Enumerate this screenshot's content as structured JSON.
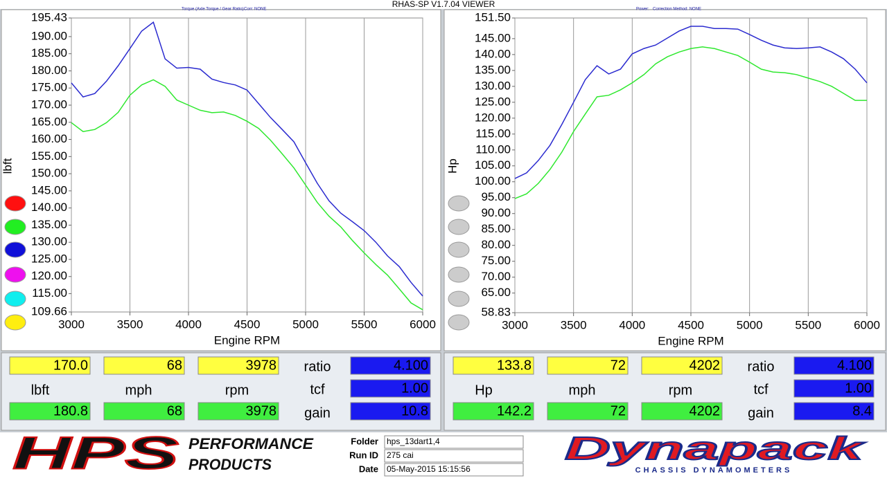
{
  "header": {
    "title": "RHAS-SP V1.7.04  VIEWER",
    "left_notes": [
      "Torque (Axle Torque / Gear Ratio)",
      "Corr: NONE"
    ],
    "right_notes": [
      "Power:",
      "Correction Method: NONE"
    ]
  },
  "chart_data": [
    {
      "type": "line",
      "xlabel": "Engine RPM",
      "ylabel": "lbft",
      "x": [
        3000,
        3100,
        3200,
        3300,
        3400,
        3500,
        3600,
        3700,
        3800,
        3900,
        4000,
        4100,
        4200,
        4300,
        4400,
        4500,
        4600,
        4700,
        4800,
        4900,
        5000,
        5100,
        5200,
        5300,
        5400,
        5500,
        5600,
        5700,
        5800,
        5900,
        6000
      ],
      "series": [
        {
          "color": "#2a2acf",
          "values": [
            176.5,
            172.4,
            173.4,
            177.0,
            181.5,
            186.5,
            191.6,
            194.2,
            183.5,
            180.8,
            181.0,
            180.5,
            177.6,
            176.6,
            175.9,
            174.4,
            170.4,
            166.4,
            162.9,
            159.3,
            153.2,
            147.2,
            142.1,
            138.5,
            136.0,
            133.4,
            130.0,
            126.0,
            122.9,
            118.3,
            114.3
          ]
        },
        {
          "color": "#2ee82e",
          "values": [
            164.9,
            162.3,
            162.9,
            164.9,
            167.9,
            172.9,
            175.9,
            177.4,
            175.5,
            171.5,
            170.0,
            168.5,
            167.8,
            168.0,
            167.0,
            165.3,
            163.2,
            159.8,
            155.8,
            151.7,
            146.7,
            141.6,
            137.6,
            134.5,
            130.5,
            126.9,
            123.5,
            120.4,
            116.4,
            112.3,
            110.3
          ]
        }
      ],
      "xlim": [
        3000,
        6000
      ],
      "ylim": [
        109.66,
        195.43
      ],
      "xticks": [
        3000,
        3500,
        4000,
        4500,
        5000,
        5500,
        6000
      ],
      "yticks": [
        {
          "value": 109.66,
          "label": "109.66"
        },
        {
          "value": 115,
          "label": "115.00"
        },
        {
          "value": 120,
          "label": "120.00"
        },
        {
          "value": 125,
          "label": "125.00"
        },
        {
          "value": 130,
          "label": "130.00"
        },
        {
          "value": 135,
          "label": "135.00"
        },
        {
          "value": 140,
          "label": "140.00"
        },
        {
          "value": 145,
          "label": "145.00"
        },
        {
          "value": 150,
          "label": "150.00"
        },
        {
          "value": 155,
          "label": "155.00"
        },
        {
          "value": 160,
          "label": "160.00"
        },
        {
          "value": 165,
          "label": "165.00"
        },
        {
          "value": 170,
          "label": "170.00"
        },
        {
          "value": 175,
          "label": "175.00"
        },
        {
          "value": 180,
          "label": "180.00"
        },
        {
          "value": 185,
          "label": "185.00"
        },
        {
          "value": 190,
          "label": "190.00"
        },
        {
          "value": 195.43,
          "label": "195.43"
        }
      ],
      "grid": "x"
    },
    {
      "type": "line",
      "xlabel": "Engine RPM",
      "ylabel": "Hp",
      "x": [
        3000,
        3100,
        3200,
        3300,
        3400,
        3500,
        3600,
        3700,
        3800,
        3900,
        4000,
        4100,
        4200,
        4300,
        4400,
        4500,
        4600,
        4700,
        4800,
        4900,
        5000,
        5100,
        5200,
        5300,
        5400,
        5500,
        5600,
        5700,
        5800,
        5900,
        6000
      ],
      "series": [
        {
          "color": "#2a2acf",
          "values": [
            101.0,
            102.8,
            106.7,
            111.5,
            118.0,
            125.0,
            132.1,
            136.5,
            133.9,
            135.4,
            140.2,
            141.9,
            143.0,
            145.2,
            147.4,
            148.9,
            148.9,
            148.2,
            148.2,
            148.0,
            146.3,
            144.5,
            143.0,
            142.1,
            141.9,
            142.1,
            142.4,
            140.8,
            138.7,
            135.4,
            131.1
          ]
        },
        {
          "color": "#2ee82e",
          "values": [
            94.7,
            96.2,
            99.5,
            103.9,
            109.3,
            115.8,
            121.3,
            126.7,
            127.2,
            128.9,
            131.1,
            133.7,
            137.1,
            139.3,
            140.8,
            141.9,
            142.4,
            141.9,
            140.8,
            139.7,
            137.6,
            135.4,
            134.5,
            134.3,
            133.7,
            132.6,
            131.5,
            130.0,
            127.8,
            125.6,
            125.6
          ]
        }
      ],
      "xlim": [
        3000,
        6000
      ],
      "ylim": [
        58.83,
        151.5
      ],
      "xticks": [
        3000,
        3500,
        4000,
        4500,
        5000,
        5500,
        6000
      ],
      "yticks": [
        {
          "value": 58.83,
          "label": "58.83"
        },
        {
          "value": 65,
          "label": "65.00"
        },
        {
          "value": 70,
          "label": "70.00"
        },
        {
          "value": 75,
          "label": "75.00"
        },
        {
          "value": 80,
          "label": "80.00"
        },
        {
          "value": 85,
          "label": "85.00"
        },
        {
          "value": 90,
          "label": "90.00"
        },
        {
          "value": 95,
          "label": "95.00"
        },
        {
          "value": 100,
          "label": "100.00"
        },
        {
          "value": 105,
          "label": "105.00"
        },
        {
          "value": 110,
          "label": "110.00"
        },
        {
          "value": 115,
          "label": "115.00"
        },
        {
          "value": 120,
          "label": "120.00"
        },
        {
          "value": 125,
          "label": "125.00"
        },
        {
          "value": 130,
          "label": "130.00"
        },
        {
          "value": 135,
          "label": "135.00"
        },
        {
          "value": 140,
          "label": "140.00"
        },
        {
          "value": 145,
          "label": "145.00"
        },
        {
          "value": 151.5,
          "label": "151.50"
        }
      ],
      "grid": "x"
    }
  ],
  "readouts": [
    {
      "top": [
        "170.0",
        "68",
        "3978"
      ],
      "units": [
        "lbft",
        "mph",
        "rpm"
      ],
      "bottom": [
        "180.8",
        "68",
        "3978"
      ],
      "params": [
        "ratio",
        "tcf",
        "gain"
      ],
      "param_values": [
        "4.100",
        "1.00",
        "10.8"
      ]
    },
    {
      "top": [
        "133.8",
        "72",
        "4202"
      ],
      "units": [
        "Hp",
        "mph",
        "rpm"
      ],
      "bottom": [
        "142.2",
        "72",
        "4202"
      ],
      "params": [
        "ratio",
        "tcf",
        "gain"
      ],
      "param_values": [
        "4.100",
        "1.00",
        "8.4"
      ]
    }
  ],
  "footer": {
    "logo": "HPS",
    "logo_sub": [
      "PERFORMANCE",
      "PRODUCTS"
    ],
    "fields": [
      {
        "label": "Folder",
        "value": "hps_13dart1,4"
      },
      {
        "label": "Run ID",
        "value": "275 cai"
      },
      {
        "label": "Date",
        "value": "05-May-2015  15:15:56"
      }
    ],
    "brand": "Dynapack",
    "brand_sub": "CHASSIS DYNAMOMETERS"
  }
}
